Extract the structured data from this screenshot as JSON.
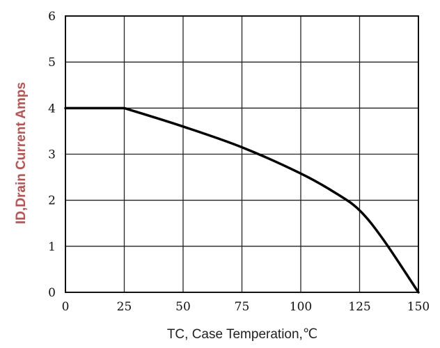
{
  "chart_data": {
    "type": "line",
    "title": "",
    "xlabel": "TC, Case Temperation,℃",
    "ylabel": "ID,Drain Current Amps",
    "xlim": [
      0,
      150
    ],
    "ylim": [
      0,
      6
    ],
    "xticks": [
      0,
      25,
      50,
      75,
      100,
      125,
      150
    ],
    "yticks": [
      0,
      1,
      2,
      3,
      4,
      5,
      6
    ],
    "grid": true,
    "colors": {
      "xlabel": "#222222",
      "ylabel": "#c0504d",
      "line": "#000000"
    },
    "series": [
      {
        "x": [
          0,
          25,
          50,
          75,
          100,
          115,
          125,
          135,
          150
        ],
        "y": [
          4.0,
          4.0,
          3.6,
          3.15,
          2.58,
          2.15,
          1.78,
          1.15,
          0.0
        ]
      }
    ]
  }
}
